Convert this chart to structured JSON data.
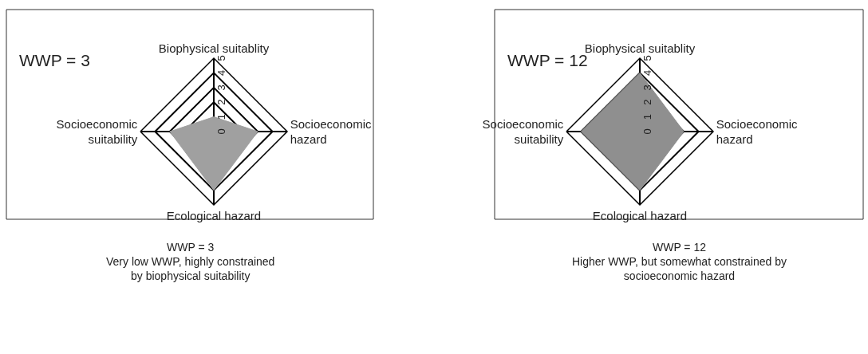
{
  "chart_data": [
    {
      "type": "radar",
      "categories": [
        "Biophysical suitablity",
        "Socioeconomic\nhazard",
        "Ecological hazard",
        "Socioeconomic\nsuitability"
      ],
      "series": [
        {
          "color": "#a0a0a0",
          "values": [
            1,
            3,
            4,
            3
          ]
        }
      ],
      "ylim": [
        0,
        5
      ],
      "yticks": [
        0,
        1,
        2,
        3,
        4,
        5
      ],
      "grid": true,
      "annotations": [
        "WWP = 3",
        "WWP = 3\nVery low WWP, highly constrained\nby biophysical suitability"
      ]
    },
    {
      "type": "radar",
      "categories": [
        "Biophysical suitablity",
        "Socioeconomic\nhazard",
        "Ecological hazard",
        "Socioeconomic\nsuitability"
      ],
      "series": [
        {
          "color": "#8f8f8f",
          "values": [
            4,
            3,
            4,
            4
          ]
        }
      ],
      "ylim": [
        0,
        5
      ],
      "yticks": [
        0,
        1,
        2,
        3,
        4,
        5
      ],
      "grid": true,
      "annotations": [
        "WWP = 12",
        "WWP = 12\nHigher WWP, but somewhat constrained by\nsocioeconomic hazard"
      ]
    }
  ]
}
